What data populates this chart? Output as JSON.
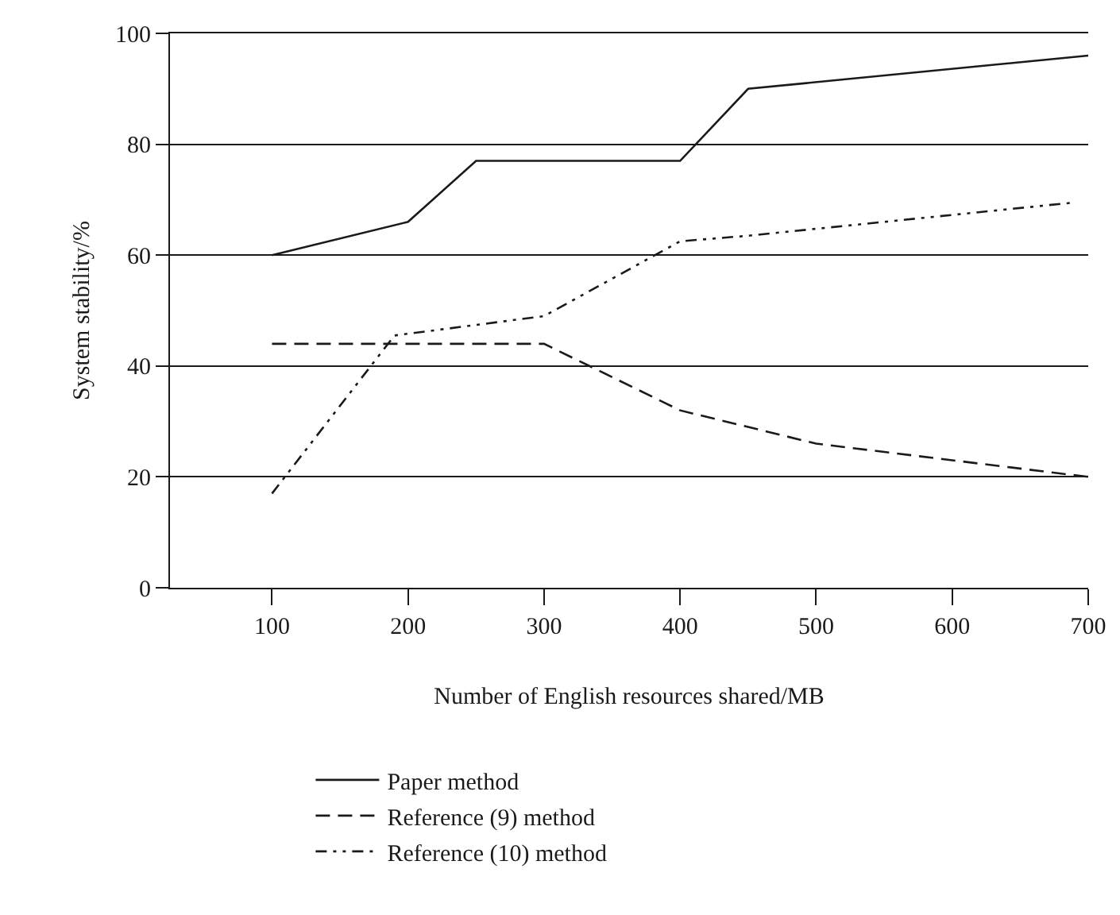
{
  "chart_data": {
    "type": "line",
    "xlabel": "Number of English resources shared/MB",
    "ylabel": "System stability/%",
    "xlim": [
      25,
      700
    ],
    "xticks": [
      100,
      200,
      300,
      400,
      500,
      600,
      700
    ],
    "ylim": [
      0,
      100
    ],
    "yticks": [
      0,
      20,
      40,
      60,
      80,
      100
    ],
    "grid": "y",
    "legend": "bottom",
    "marker": "none",
    "series": [
      {
        "name": "Paper method",
        "color": "#1a1a1a",
        "line_style": "solid",
        "x": [
          100,
          200,
          250,
          400,
          450,
          700
        ],
        "values": [
          60,
          66,
          77,
          77,
          90,
          96
        ]
      },
      {
        "name": "Reference (9) method",
        "color": "#1a1a1a",
        "line_style": "dashed",
        "x": [
          100,
          300,
          400,
          500,
          700
        ],
        "values": [
          44,
          44,
          32,
          26,
          20
        ]
      },
      {
        "name": "Reference (10) method",
        "color": "#1a1a1a",
        "line_style": "dotted",
        "x": [
          100,
          190,
          300,
          400,
          450,
          690
        ],
        "values": [
          17,
          45.5,
          49,
          62.5,
          63.5,
          69.5
        ]
      }
    ]
  }
}
